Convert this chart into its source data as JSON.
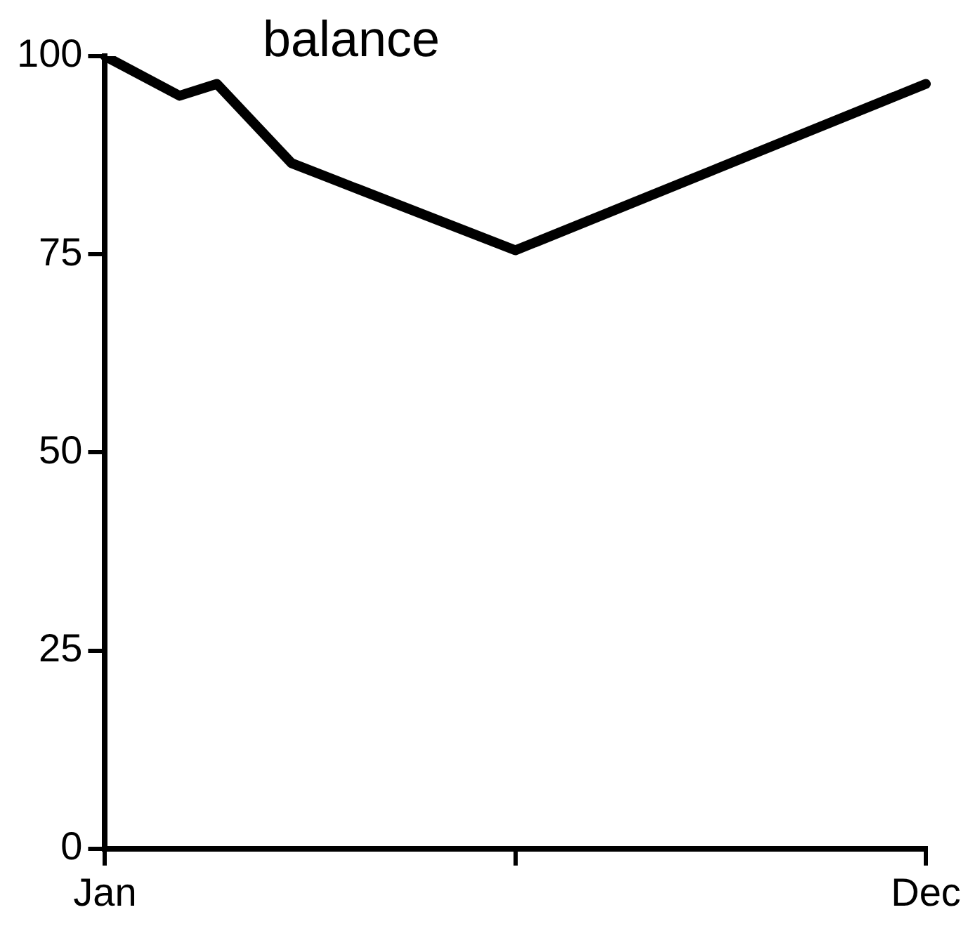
{
  "chart_data": {
    "type": "line",
    "title": "balance",
    "categories": [
      "Jan",
      null,
      null,
      null,
      null,
      null,
      null,
      null,
      null,
      null,
      null,
      null,
      null,
      null,
      null,
      null,
      null,
      null,
      null,
      null,
      null,
      null,
      "Dec"
    ],
    "series": [
      {
        "color": "#000000",
        "values": [
          100,
          null,
          95,
          96.5,
          null,
          86.5,
          null,
          null,
          null,
          null,
          null,
          75.5,
          null,
          null,
          null,
          null,
          null,
          null,
          null,
          null,
          null,
          null,
          96.5
        ]
      }
    ],
    "ylim": [
      0,
      100
    ],
    "yticks": [
      0,
      25,
      50,
      75,
      100
    ],
    "grid": false,
    "legend": false,
    "marker": "none",
    "line_style": "solid"
  }
}
